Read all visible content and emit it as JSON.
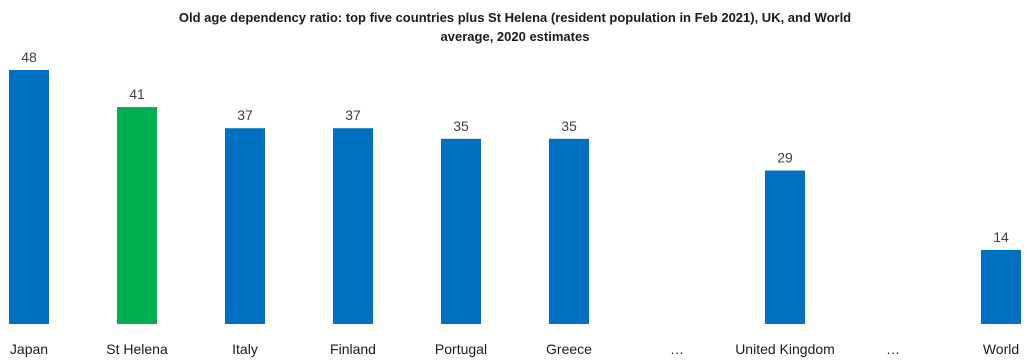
{
  "chart_data": {
    "type": "bar",
    "title_line1": "Old age dependency ratio: top five countries plus St Helena (resident population in Feb 2021), UK, and World",
    "title_line2": "average, 2020 estimates",
    "categories": [
      "Japan",
      "St Helena",
      "Italy",
      "Finland",
      "Portugal",
      "Greece",
      "…",
      "United Kingdom",
      "…",
      "World"
    ],
    "values": [
      48,
      41,
      37,
      37,
      35,
      35,
      null,
      29,
      null,
      14
    ],
    "colors": [
      "#0070c0",
      "#00b050",
      "#0070c0",
      "#0070c0",
      "#0070c0",
      "#0070c0",
      null,
      "#0070c0",
      null,
      "#0070c0"
    ],
    "xlabel": "",
    "ylabel": "",
    "ylim": [
      0,
      48
    ],
    "grid": false,
    "legend": "none"
  }
}
